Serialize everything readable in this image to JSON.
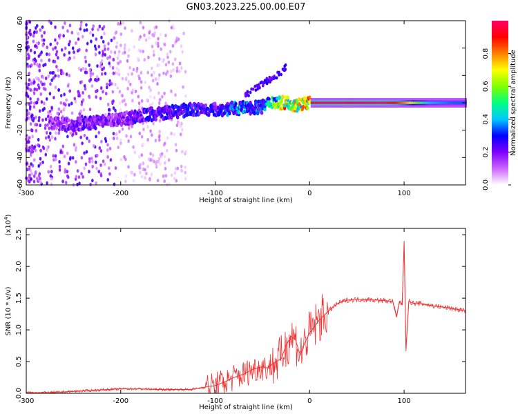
{
  "title": "GN03.2023.225.00.00.E07",
  "chart_data": [
    {
      "type": "heatmap",
      "xlabel": "Height of straight line (km)",
      "ylabel": "Frequency (Hz)",
      "xlim": [
        -300,
        165
      ],
      "ylim": [
        -60,
        60
      ],
      "x_ticks": [
        -300,
        -200,
        -100,
        0,
        100
      ],
      "y_ticks": [
        60,
        40,
        20,
        0,
        -20,
        -40,
        -60
      ],
      "colorbar": {
        "label": "Normalized spectral amplitude",
        "range": [
          0,
          1
        ],
        "ticks": [
          0.0,
          0.2,
          0.4,
          0.6,
          0.8
        ],
        "colors": [
          "#ffffff",
          "#cc66ff",
          "#7f00ff",
          "#0000ff",
          "#00c8ff",
          "#00ff80",
          "#80ff00",
          "#ffff00",
          "#ff8000",
          "#ff0000",
          "#ff0066"
        ]
      },
      "ridge": {
        "x": [
          -275,
          -250,
          -225,
          -200,
          -175,
          -150,
          -125,
          -100,
          -75,
          -50,
          -40,
          -30,
          -25,
          -20,
          -15,
          -10,
          -5,
          0,
          25,
          50,
          75,
          90,
          100,
          125,
          150,
          165
        ],
        "frequency": [
          -15,
          -16,
          -14,
          -12,
          -9,
          -7,
          -5,
          -5,
          -4,
          -3,
          1,
          0,
          0,
          0,
          -2,
          -1,
          0,
          0,
          0,
          0,
          0,
          0,
          0,
          0,
          0,
          0
        ],
        "amplitude": [
          0.2,
          0.25,
          0.25,
          0.22,
          0.3,
          0.3,
          0.35,
          0.3,
          0.45,
          0.35,
          0.55,
          0.85,
          0.85,
          0.75,
          0.8,
          0.8,
          0.85,
          0.95,
          1.0,
          1.0,
          1.0,
          0.9,
          0.8,
          0.4,
          0.35,
          0.35
        ]
      },
      "branch": {
        "x": [
          -70,
          -55,
          -40,
          -30,
          -25
        ],
        "frequency": [
          4,
          12,
          18,
          22,
          26
        ]
      },
      "grid": false
    },
    {
      "type": "line",
      "xlabel": "Height of straight line (km)",
      "ylabel": "SNR (10 * v/v)",
      "multiplier": "(x10",
      "multiplier_exp": "4",
      "multiplier_close": ")",
      "xlim": [
        -300,
        165
      ],
      "ylim": [
        0,
        2.6
      ],
      "x_ticks": [
        -300,
        -200,
        -100,
        0,
        100
      ],
      "y_ticks": [
        0.0,
        0.5,
        1.0,
        1.5,
        2.0,
        2.5
      ],
      "series": [
        {
          "color": "#ee3333",
          "x": [
            -300,
            -275,
            -250,
            -225,
            -200,
            -180,
            -160,
            -140,
            -125,
            -110,
            -100,
            -90,
            -80,
            -70,
            -60,
            -50,
            -45,
            -40,
            -35,
            -30,
            -25,
            -20,
            -15,
            -10,
            -5,
            0,
            10,
            20,
            30,
            40,
            50,
            60,
            70,
            80,
            88,
            92,
            95,
            98,
            100,
            102,
            105,
            110,
            120,
            130,
            140,
            150,
            165
          ],
          "y": [
            0.01,
            0.01,
            0.03,
            0.05,
            0.07,
            0.07,
            0.06,
            0.06,
            0.06,
            0.1,
            0.12,
            0.18,
            0.25,
            0.3,
            0.38,
            0.42,
            0.4,
            0.45,
            0.5,
            0.55,
            0.75,
            0.9,
            0.85,
            0.6,
            0.8,
            0.95,
            1.15,
            1.3,
            1.42,
            1.47,
            1.48,
            1.48,
            1.47,
            1.46,
            1.45,
            1.2,
            1.45,
            1.4,
            2.4,
            0.7,
            1.45,
            1.42,
            1.41,
            1.38,
            1.36,
            1.34,
            1.3
          ]
        }
      ],
      "grid": false
    }
  ]
}
